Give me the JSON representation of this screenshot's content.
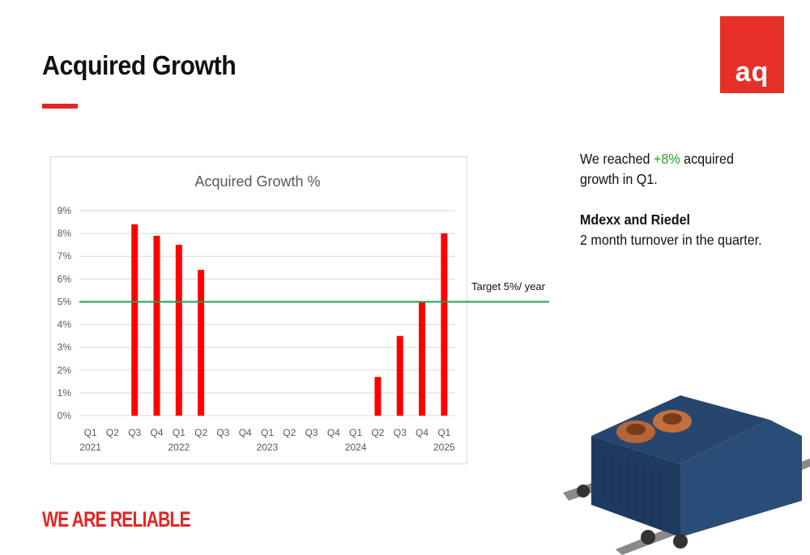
{
  "slide": {
    "title": "Acquired Growth",
    "logo_text": "aq",
    "tagline": "WE ARE RELIABLE"
  },
  "commentary": {
    "line1_prefix": "We reached ",
    "line1_accent": "+8%",
    "line1_suffix": " acquired",
    "line2": "growth in Q1.",
    "heading": "Mdexx and Riedel",
    "detail": "2 month turnover in the quarter."
  },
  "colors": {
    "brand_red": "#e52520",
    "bar_red": "#ff0000",
    "target_green": "#22a04b",
    "accent_green": "#2ca02c"
  },
  "chart_data": {
    "type": "bar",
    "title": "Acquired Growth %",
    "categories": [
      "Q1",
      "Q2",
      "Q3",
      "Q4",
      "Q1",
      "Q2",
      "Q3",
      "Q4",
      "Q1",
      "Q2",
      "Q3",
      "Q4",
      "Q1",
      "Q2",
      "Q3",
      "Q4",
      "Q1"
    ],
    "year_labels": [
      {
        "index": 0,
        "label": "2021"
      },
      {
        "index": 4,
        "label": "2022"
      },
      {
        "index": 8,
        "label": "2023"
      },
      {
        "index": 12,
        "label": "2024"
      },
      {
        "index": 16,
        "label": "2025"
      }
    ],
    "values": [
      0,
      0,
      8.4,
      7.9,
      7.5,
      6.4,
      0,
      0,
      0,
      0,
      0,
      0,
      0,
      1.7,
      3.5,
      5.0,
      8.0
    ],
    "y_ticks": [
      "0%",
      "1%",
      "2%",
      "3%",
      "4%",
      "5%",
      "6%",
      "7%",
      "8%",
      "9%"
    ],
    "ylim": [
      0,
      9
    ],
    "grid": true,
    "target": {
      "value": 5,
      "label": "Target 5%/ year"
    }
  }
}
